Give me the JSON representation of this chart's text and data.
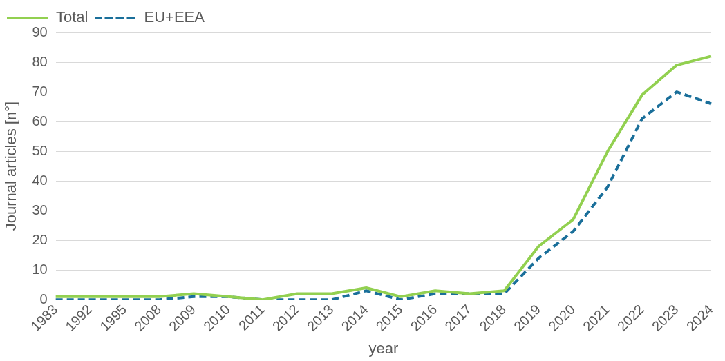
{
  "chart_data": {
    "type": "line",
    "xlabel": "year",
    "ylabel": "Journal articles [n°]",
    "categories": [
      "1983",
      "1992",
      "1995",
      "2008",
      "2009",
      "2010",
      "2011",
      "2012",
      "2013",
      "2014",
      "2015",
      "2016",
      "2017",
      "2018",
      "2019",
      "2020",
      "2021",
      "2022",
      "2023",
      "2024"
    ],
    "series": [
      {
        "name": "Total",
        "color": "#92d050",
        "line_style": "solid",
        "values": [
          1,
          1,
          1,
          1,
          2,
          1,
          0,
          2,
          2,
          4,
          1,
          3,
          2,
          3,
          18,
          27,
          50,
          69,
          79,
          82
        ]
      },
      {
        "name": "EU+EEA",
        "color": "#1a6f9a",
        "line_style": "dashed",
        "values": [
          0,
          0,
          0,
          0,
          1,
          1,
          0,
          0,
          0,
          3,
          0,
          2,
          2,
          2,
          14,
          23,
          38,
          61,
          70,
          66
        ]
      }
    ],
    "ylim": [
      0,
      90
    ],
    "yticks": [
      0,
      10,
      20,
      30,
      40,
      50,
      60,
      70,
      80,
      90
    ],
    "grid": "y",
    "legend": "top left",
    "marker": "none"
  }
}
